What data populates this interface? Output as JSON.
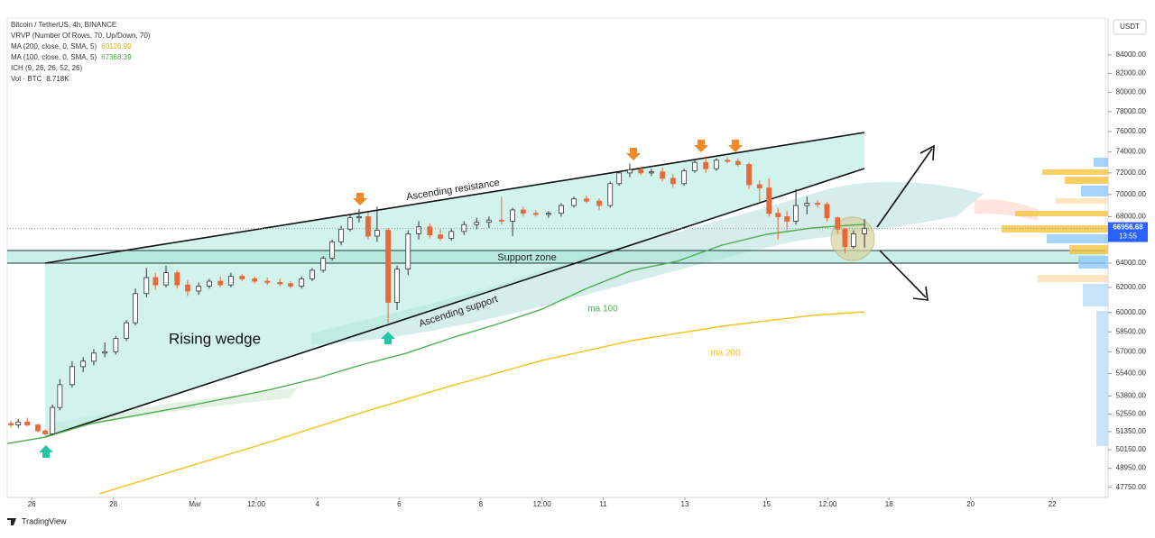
{
  "chart_data": {
    "type": "candlestick",
    "title": "Bitcoin / TetherUS, 4h, BINANCE",
    "legend_lines": [
      {
        "text": "VRVP (Number Of Rows, 70, Up/Down, 70)"
      },
      {
        "text": "MA (200, close, 0, SMA, 5)",
        "value": "60126.90",
        "color": "#e0b000"
      },
      {
        "text": "MA (100, close, 0, SMA, 5)",
        "value": "67368.39",
        "color": "#4caf50"
      },
      {
        "text": "ICH (9, 26, 26, 52, 26)"
      },
      {
        "text": "Vol · BTC",
        "value": "8.718K"
      }
    ],
    "currency": "USDT",
    "countdown": "13:55",
    "log_scale": true,
    "ylim": [
      47120,
      88150
    ],
    "yticks": [
      {
        "value": 84000,
        "label": "84000.00"
      },
      {
        "value": 82000,
        "label": "82000.00"
      },
      {
        "value": 80000,
        "label": "80000.00"
      },
      {
        "value": 78000,
        "label": "78000.00"
      },
      {
        "value": 76000,
        "label": "76000.00"
      },
      {
        "value": 74000,
        "label": "74000.00"
      },
      {
        "value": 72000,
        "label": "72000.00"
      },
      {
        "value": 70000,
        "label": "70000.00"
      },
      {
        "value": 68000,
        "label": "68000.00"
      },
      {
        "value": 64000,
        "label": "64000.00"
      },
      {
        "value": 62000,
        "label": "62000.00"
      },
      {
        "value": 60000,
        "label": "60000.00"
      },
      {
        "value": 58500,
        "label": "58500.00"
      },
      {
        "value": 57000,
        "label": "57000.00"
      },
      {
        "value": 55400,
        "label": "55400.00"
      },
      {
        "value": 53800,
        "label": "53800.00"
      },
      {
        "value": 52550,
        "label": "52550.00"
      },
      {
        "value": 51350,
        "label": "51350.00"
      },
      {
        "value": 50150,
        "label": "50150.00"
      },
      {
        "value": 48950,
        "label": "48950.00"
      },
      {
        "value": 47750,
        "label": "47750.00"
      }
    ],
    "xlim": [
      -0.6,
      26.3
    ],
    "xticks": [
      {
        "value": 0,
        "label": "26"
      },
      {
        "value": 2,
        "label": "28"
      },
      {
        "value": 4,
        "label": "Mar"
      },
      {
        "value": 5.5,
        "label": "12:00"
      },
      {
        "value": 7,
        "label": "4"
      },
      {
        "value": 9,
        "label": "6"
      },
      {
        "value": 11,
        "label": "8"
      },
      {
        "value": 12.5,
        "label": "12:00"
      },
      {
        "value": 14,
        "label": "11"
      },
      {
        "value": 16,
        "label": "13"
      },
      {
        "value": 18,
        "label": "15"
      },
      {
        "value": 19.5,
        "label": "12:00"
      },
      {
        "value": 21,
        "label": "18"
      },
      {
        "value": 23,
        "label": "20"
      },
      {
        "value": 25,
        "label": "22"
      }
    ],
    "up_color": "#ffffff",
    "down_color": "#e8683a",
    "x": [
      -0.51,
      -0.33,
      -0.11,
      0.15,
      0.33,
      0.51,
      0.69,
      0.99,
      1.26,
      1.52,
      1.79,
      2.06,
      2.32,
      2.54,
      2.81,
      3.03,
      3.29,
      3.56,
      3.82,
      4.09,
      4.35,
      4.62,
      4.88,
      5.15,
      5.46,
      5.77,
      6.08,
      6.34,
      6.61,
      6.87,
      7.14,
      7.36,
      7.58,
      7.8,
      8.02,
      8.24,
      8.46,
      8.73,
      8.95,
      9.22,
      9.48,
      9.75,
      10.01,
      10.28,
      10.59,
      10.9,
      11.2,
      11.51,
      11.78,
      12.04,
      12.35,
      12.66,
      12.97,
      13.28,
      13.59,
      13.9,
      14.17,
      14.39,
      14.65,
      14.92,
      15.18,
      15.45,
      15.71,
      15.98,
      16.24,
      16.51,
      16.77,
      17.04,
      17.3,
      17.57,
      17.83,
      18.06,
      18.28,
      18.5,
      18.72,
      18.99,
      19.25,
      19.48,
      19.74,
      19.92,
      20.13,
      20.4
    ],
    "open": [
      51900,
      51800,
      52000,
      51800,
      51400,
      51200,
      53000,
      54600,
      55900,
      56300,
      56900,
      57000,
      58000,
      59200,
      61500,
      62800,
      62200,
      63200,
      62200,
      61700,
      62100,
      62500,
      62200,
      62900,
      62700,
      62500,
      62400,
      62300,
      62100,
      62700,
      63400,
      64400,
      65800,
      66900,
      67900,
      68000,
      66300,
      66800,
      60800,
      63500,
      66500,
      67100,
      66400,
      66100,
      66700,
      67300,
      67500,
      67700,
      67600,
      68600,
      68300,
      68200,
      68300,
      69000,
      69600,
      69400,
      69000,
      71000,
      72000,
      72300,
      72000,
      72100,
      71500,
      71000,
      72200,
      73000,
      72400,
      73200,
      73100,
      72800,
      70900,
      70600,
      68300,
      68000,
      67600,
      69000,
      69200,
      69100,
      67900,
      66900,
      65400,
      66500
    ],
    "high": [
      52100,
      52200,
      52300,
      51900,
      51500,
      53200,
      55000,
      56300,
      56600,
      57200,
      57700,
      58200,
      59400,
      61900,
      63600,
      63200,
      63800,
      63400,
      62600,
      62400,
      62700,
      62900,
      63200,
      63100,
      62900,
      62800,
      62700,
      62500,
      62900,
      63600,
      64600,
      66000,
      67200,
      68200,
      68700,
      68400,
      68900,
      67000,
      63800,
      66800,
      67600,
      67400,
      66900,
      67000,
      67600,
      67900,
      68000,
      69800,
      68800,
      68900,
      68600,
      68500,
      69200,
      69800,
      69900,
      69600,
      71200,
      72200,
      72900,
      72600,
      72400,
      72500,
      71900,
      72400,
      73200,
      73600,
      73400,
      73500,
      73400,
      73000,
      71300,
      71500,
      68800,
      68500,
      70500,
      69800,
      69500,
      69300,
      68000,
      67000,
      66800,
      67800
    ],
    "low": [
      51600,
      51600,
      51700,
      51300,
      51100,
      51100,
      52800,
      54400,
      55500,
      56000,
      56600,
      56800,
      57800,
      59000,
      61200,
      61800,
      62000,
      61900,
      61300,
      61400,
      61900,
      62000,
      62000,
      62500,
      62300,
      62200,
      62100,
      61900,
      61900,
      62500,
      63200,
      64200,
      65500,
      66700,
      67500,
      66000,
      65800,
      59200,
      60200,
      63000,
      66000,
      66100,
      65900,
      65900,
      66400,
      66900,
      67000,
      67300,
      66300,
      68000,
      68000,
      67900,
      68000,
      68800,
      69200,
      68600,
      68800,
      70800,
      71600,
      71800,
      71700,
      71200,
      70600,
      70800,
      72000,
      72000,
      72200,
      72900,
      72600,
      70500,
      69300,
      68000,
      66000,
      66800,
      67300,
      68200,
      68800,
      67600,
      66500,
      64800,
      65200,
      65300
    ],
    "close": [
      51800,
      52000,
      51800,
      51400,
      51200,
      53000,
      54600,
      55900,
      56300,
      56900,
      57000,
      58000,
      59200,
      61500,
      62800,
      62200,
      63200,
      62200,
      61700,
      62100,
      62500,
      62200,
      62900,
      62700,
      62500,
      62400,
      62300,
      62100,
      62700,
      63400,
      64400,
      65800,
      66900,
      67900,
      68000,
      66300,
      66800,
      60800,
      63500,
      66500,
      67100,
      66400,
      66100,
      66700,
      67300,
      67500,
      67700,
      67600,
      68600,
      68300,
      68200,
      68300,
      69000,
      69600,
      69400,
      69000,
      71000,
      72000,
      72300,
      72000,
      72100,
      71500,
      71000,
      72200,
      73000,
      72400,
      73200,
      73100,
      72800,
      70900,
      70600,
      68300,
      68000,
      67600,
      69000,
      69200,
      69100,
      67900,
      66900,
      65400,
      66500,
      66956.68
    ],
    "series": [
      {
        "name": "ma 100",
        "color": "#4caf50",
        "x": [
          -0.6,
          0.33,
          1.44,
          3.65,
          5.86,
          6.96,
          8.07,
          9.17,
          10.28,
          11.38,
          12.49,
          13.59,
          14.7,
          15.8,
          16.91,
          18.01,
          19.12,
          20.0,
          20.4
        ],
        "values": [
          50560,
          50980,
          51890,
          53000,
          54260,
          55040,
          56020,
          56880,
          58040,
          59070,
          60250,
          61910,
          63390,
          64140,
          65520,
          66450,
          67000,
          67230,
          67320
        ]
      },
      {
        "name": "ma 200",
        "color": "#f2c21b",
        "x": [
          1.66,
          3.65,
          5.86,
          8.07,
          10.28,
          12.49,
          14.7,
          16.91,
          19.12,
          20.4
        ],
        "values": [
          47340,
          48920,
          50690,
          52630,
          54520,
          56350,
          57830,
          58930,
          59770,
          60050
        ]
      }
    ],
    "annotations": {
      "resistance": "Ascending resistance",
      "support": "Ascending support",
      "zone": "Support zone",
      "pattern": "Rising wedge"
    }
  },
  "footer": {
    "brand": "TradingView"
  }
}
